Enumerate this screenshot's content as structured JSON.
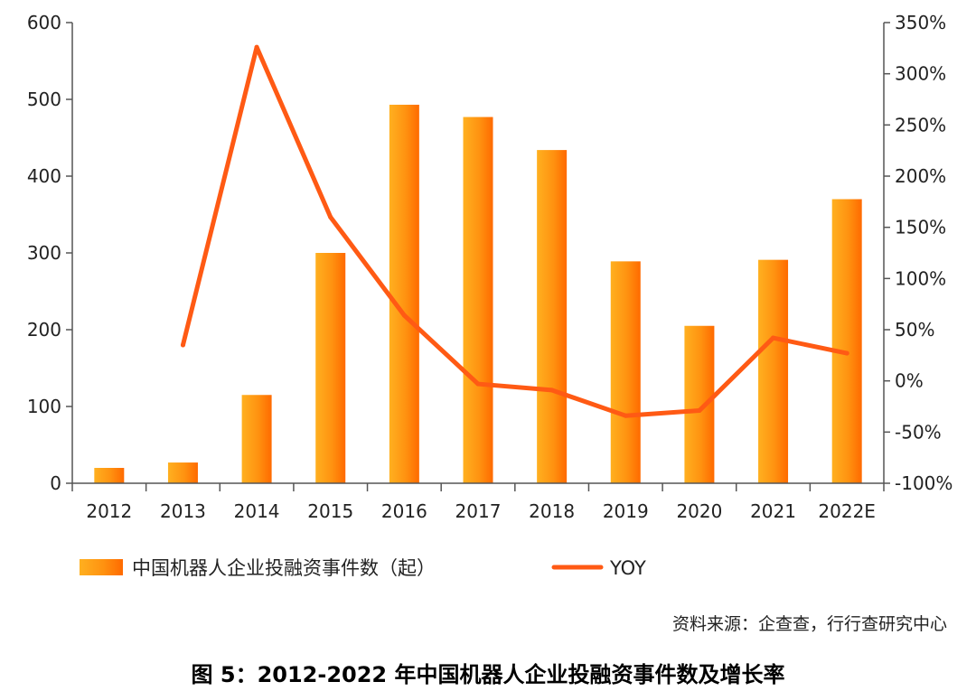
{
  "chart_data": {
    "type": "bar",
    "categories": [
      "2012",
      "2013",
      "2014",
      "2015",
      "2016",
      "2017",
      "2018",
      "2019",
      "2020",
      "2021",
      "2022E"
    ],
    "series": [
      {
        "name": "中国机器人企业投融资事件数（起）",
        "type": "bar",
        "axis": "left",
        "values": [
          20,
          27,
          115,
          300,
          493,
          477,
          434,
          289,
          205,
          291,
          370
        ]
      },
      {
        "name": "YOY",
        "type": "line",
        "axis": "right",
        "values": [
          null,
          35,
          326,
          160,
          64,
          -3,
          -9,
          -34,
          -29,
          42,
          27
        ]
      }
    ],
    "left_axis": {
      "ylim": [
        0,
        600
      ],
      "ticks": [
        "0",
        "100",
        "200",
        "300",
        "400",
        "500",
        "600"
      ]
    },
    "right_axis": {
      "ylim": [
        -100,
        350
      ],
      "ticks": [
        "-100%",
        "-50%",
        "0%",
        "50%",
        "100%",
        "150%",
        "200%",
        "250%",
        "300%",
        "350%"
      ]
    },
    "legend_position": "bottom",
    "grid": false,
    "colors": {
      "bar_top": "#FFA51F",
      "bar_bottom": "#FF6A00",
      "line": "#FF5A14"
    },
    "source": "资料来源：企查查，行行查研究中心",
    "caption": "图 5：2012-2022 年中国机器人企业投融资事件数及增长率"
  }
}
